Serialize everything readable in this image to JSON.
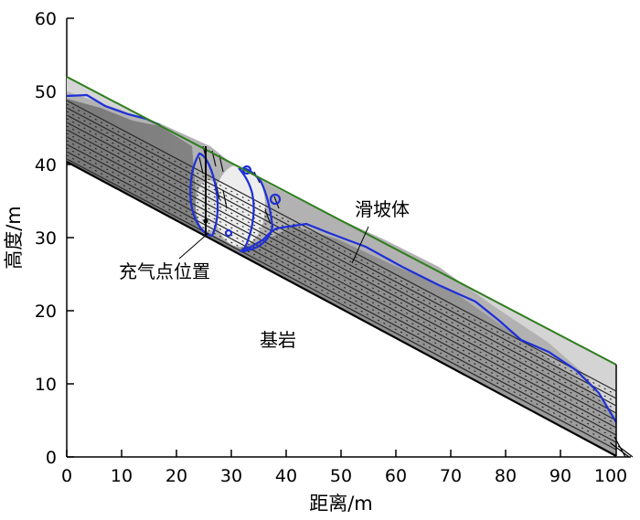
{
  "figure": {
    "x_axis": {
      "title": "距离/m",
      "min": 0,
      "max": 100,
      "ticks": [
        "0",
        "10",
        "20",
        "30",
        "40",
        "50",
        "60",
        "70",
        "80",
        "90",
        "100"
      ]
    },
    "y_axis": {
      "title": "高度/m",
      "min": 0,
      "max": 60,
      "ticks": [
        "0",
        "10",
        "20",
        "30",
        "40",
        "50",
        "60"
      ]
    },
    "annotations": {
      "landslide_body": "滑坡体",
      "inflation_point": "充气点位置",
      "bedrock": "基岩"
    },
    "colors": {
      "ground_surface": "#2e7d1e",
      "water_table": "#1f2fd8",
      "bedrock_line": "#000000",
      "body_fill_dark": "#8c8c8c",
      "body_fill_light": "#d6d6d6"
    }
  }
}
